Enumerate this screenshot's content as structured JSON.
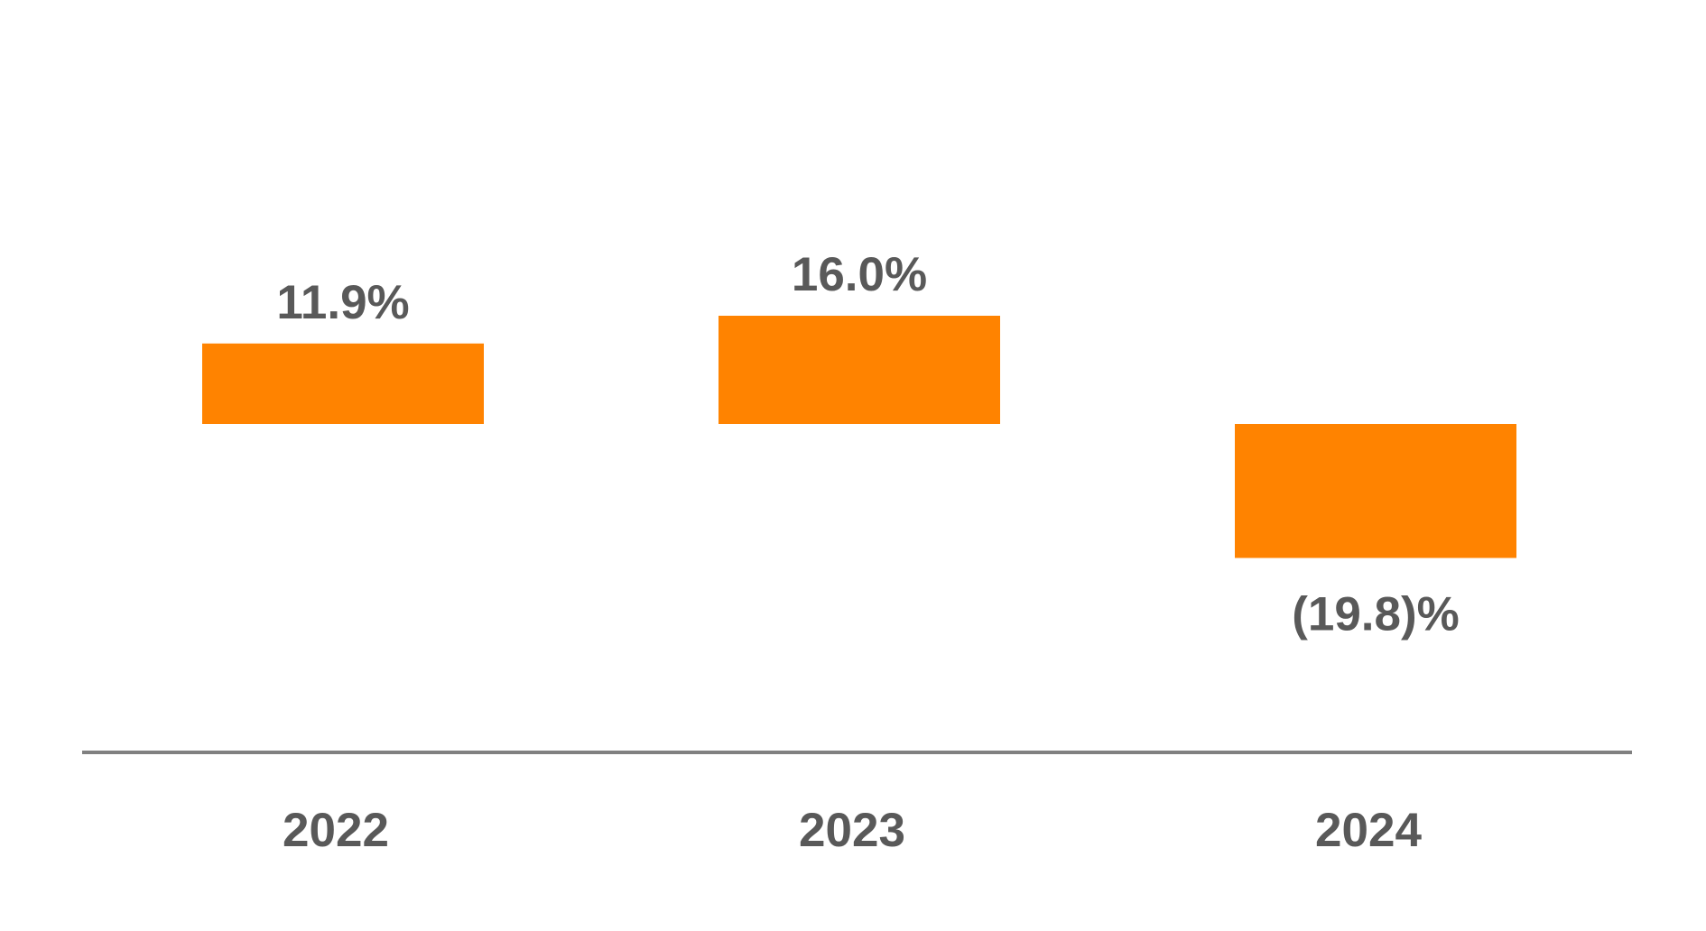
{
  "chart_data": {
    "type": "bar",
    "categories": [
      "2022",
      "2023",
      "2024"
    ],
    "values": [
      11.9,
      16.0,
      -19.8
    ],
    "data_labels": [
      "11.9%",
      "16.0%",
      "(19.8)%"
    ],
    "title": "",
    "xlabel": "",
    "ylabel": "",
    "grid": false,
    "legend": "none",
    "colors": {
      "bar": "#FF8300",
      "axis": "#808080",
      "text": "#595959"
    }
  }
}
